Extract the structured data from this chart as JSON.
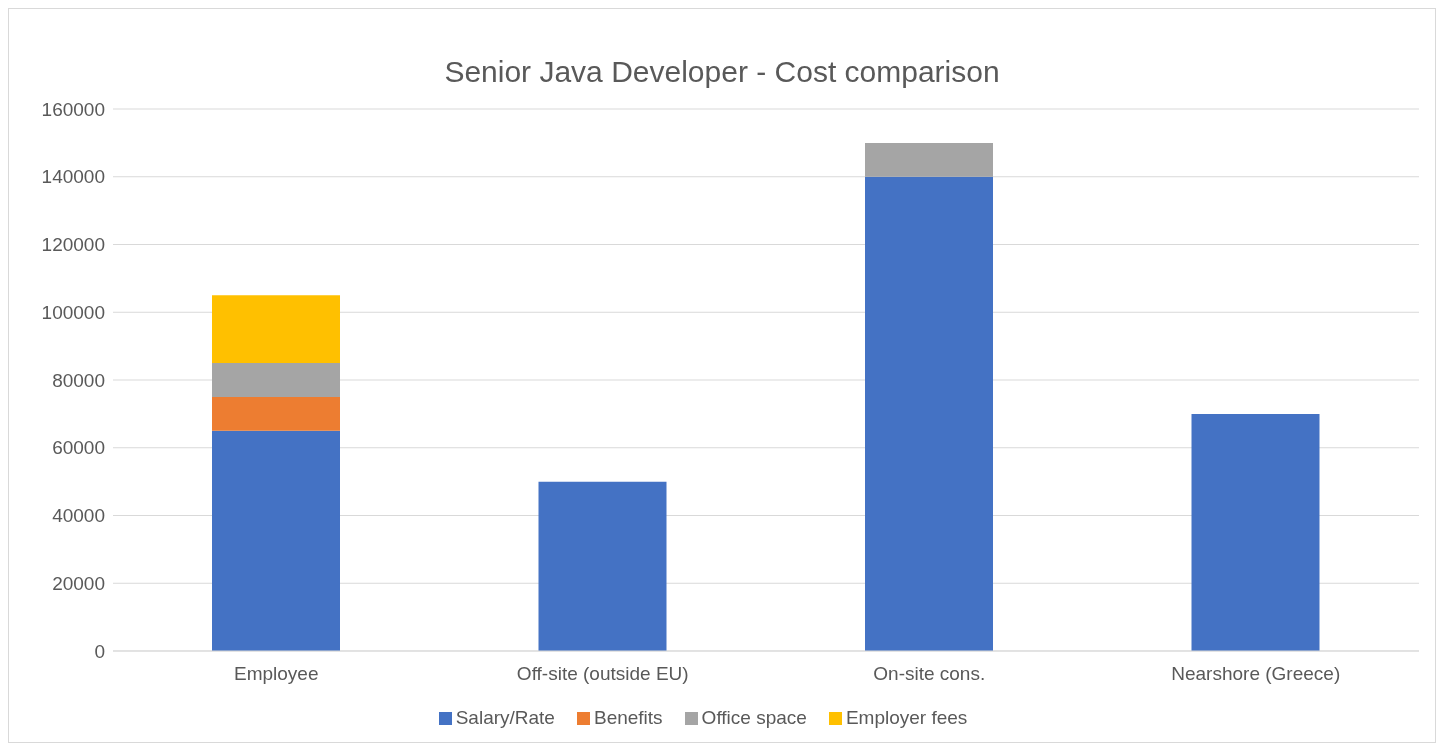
{
  "chart_data": {
    "type": "bar",
    "title": "Senior Java Developer - Cost comparison",
    "categories": [
      "Employee",
      "Off-site (outside EU)",
      "On-site cons.",
      "Nearshore (Greece)"
    ],
    "stacked": true,
    "series": [
      {
        "name": "Salary/Rate",
        "color": "#4472c4",
        "values": [
          65000,
          50000,
          140000,
          70000
        ]
      },
      {
        "name": "Benefits",
        "color": "#ed7d31",
        "values": [
          10000,
          null,
          null,
          null
        ]
      },
      {
        "name": "Office space",
        "color": "#a5a5a5",
        "values": [
          10000,
          null,
          10000,
          null
        ]
      },
      {
        "name": "Employer fees",
        "color": "#ffc000",
        "values": [
          20000,
          null,
          null,
          null
        ]
      }
    ],
    "ylim": [
      0,
      160000
    ],
    "yticks": [
      0,
      20000,
      40000,
      60000,
      80000,
      100000,
      120000,
      140000,
      160000
    ],
    "grid": "y",
    "legend": "bottom"
  }
}
